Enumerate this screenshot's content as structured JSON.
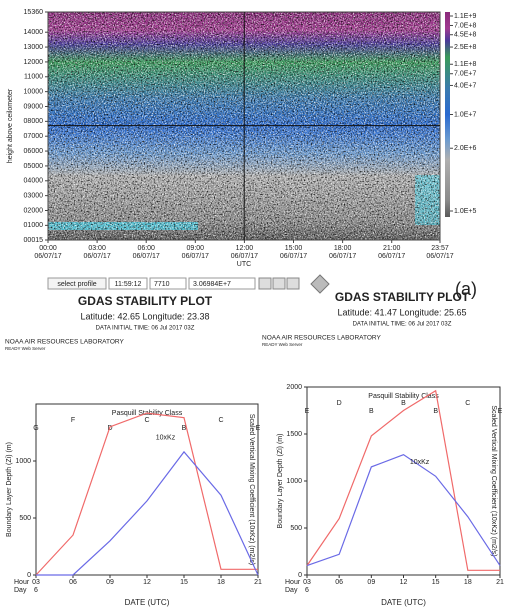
{
  "chart_data": [
    {
      "type": "heatmap",
      "y_label": "height above ceilometer",
      "x_label": "UTC",
      "xlim": [
        0,
        23.95
      ],
      "xticks": [
        {
          "value": 0,
          "label": "00:00"
        },
        {
          "value": 3,
          "label": "03:00"
        },
        {
          "value": 6,
          "label": "06:00"
        },
        {
          "value": 9,
          "label": "09:00"
        },
        {
          "value": 12,
          "label": "12:00"
        },
        {
          "value": 15,
          "label": "15:00"
        },
        {
          "value": 18,
          "label": "18:00"
        },
        {
          "value": 21,
          "label": "21:00"
        },
        {
          "value": 23.95,
          "label": "23:57"
        }
      ],
      "x_dates": [
        "06/07/17",
        "06/07/17",
        "06/07/17",
        "06/07/17",
        "06/07/17",
        "06/07/17",
        "06/07/17",
        "06/07/17",
        "06/07/17"
      ],
      "ylim": [
        15,
        15360
      ],
      "yticks": [
        {
          "value": 15,
          "label": "00015"
        },
        {
          "value": 1000,
          "label": "01000"
        },
        {
          "value": 2000,
          "label": "02000"
        },
        {
          "value": 3000,
          "label": "03000"
        },
        {
          "value": 4000,
          "label": "04000"
        },
        {
          "value": 5000,
          "label": "05000"
        },
        {
          "value": 6000,
          "label": "06000"
        },
        {
          "value": 7000,
          "label": "07000"
        },
        {
          "value": 8000,
          "label": "08000"
        },
        {
          "value": 9000,
          "label": "09000"
        },
        10000,
        11000,
        12000,
        13000,
        14000,
        15360
      ],
      "clim": [
        100000,
        1100000000
      ],
      "color_scale": "log",
      "color_ticks": [
        {
          "value": 1100000000,
          "label": "1.1E+9"
        },
        {
          "value": 700000000,
          "label": "7.0E+8"
        },
        {
          "value": 450000000,
          "label": "4.5E+8"
        },
        {
          "value": 250000000,
          "label": "2.5E+8"
        },
        {
          "value": 110000000,
          "label": "1.1E+8"
        },
        {
          "value": 70000000,
          "label": "7.0E+7"
        },
        {
          "value": 40000000,
          "label": "4.0E+7"
        },
        {
          "value": 10000000,
          "label": "1.0E+7"
        },
        {
          "value": 2000000,
          "label": "2.0E+6"
        },
        {
          "value": 100000,
          "label": "1.0E+5"
        }
      ],
      "selected_profile": {
        "button": "select profile",
        "time": "11:59:12",
        "height": 7710,
        "value": {
          "value": 30698400,
          "label": "3.06984E+7"
        }
      },
      "panel_label": "(a)"
    },
    {
      "type": "line",
      "title": "GDAS STABILITY PLOT",
      "subtitle": "Latitude: 42.65 Longitude: 23.38",
      "init_time": "DATA INITIAL TIME: 06 Jul 2017 03Z",
      "source": "NOAA AIR RESOURCES LABORATORY",
      "source_sub": "READY Web Server",
      "class_label": "Pasquill Stability Class",
      "y_label": "Boundary Layer Depth (Zi) (m)",
      "y2_label": "Scaled Vertical Mixing Coefficient (10xKz) (m2/s)",
      "x_label": "DATE (UTC)",
      "hour_label": "Hour",
      "day_label": "Day",
      "day": "6",
      "x": [
        3,
        6,
        9,
        12,
        15,
        18,
        21
      ],
      "xlim": [
        3,
        21
      ],
      "xticks": [
        {
          "value": 3,
          "label": "03"
        },
        {
          "value": 6,
          "label": "06"
        },
        {
          "value": 9,
          "label": "09"
        },
        12,
        15,
        18,
        21
      ],
      "ylim": [
        0,
        1500
      ],
      "yticks": [
        0,
        500,
        1000
      ],
      "stability_class": [
        "G",
        "F",
        "D",
        "C",
        "B",
        "C",
        "E"
      ],
      "series": [
        {
          "color": "#f06a6a",
          "values": [
            0,
            350,
            1300,
            1420,
            1380,
            50,
            50
          ]
        },
        {
          "color": "#6a6ae6",
          "values": [
            0,
            0,
            300,
            650,
            1080,
            700,
            0
          ]
        }
      ],
      "annotation": "10xKz"
    },
    {
      "type": "line",
      "title": "GDAS STABILITY PLOT",
      "subtitle": "Latitude: 41.47 Longitude: 25.65",
      "init_time": "DATA INITIAL TIME: 06 Jul 2017 03Z",
      "source": "NOAA AIR RESOURCES LABORATORY",
      "source_sub": "READY Web Server",
      "class_label": "Pasquill Stability Class",
      "y_label": "Boundary Layer Depth (Zi) (m)",
      "y2_label": "Scaled Vertical Mixing Coefficient (10xKz) (m2/s)",
      "x_label": "DATE (UTC)",
      "hour_label": "Hour",
      "day_label": "Day",
      "day": "6",
      "x": [
        3,
        6,
        9,
        12,
        15,
        18,
        21
      ],
      "xlim": [
        3,
        21
      ],
      "xticks": [
        {
          "value": 3,
          "label": "03"
        },
        {
          "value": 6,
          "label": "06"
        },
        {
          "value": 9,
          "label": "09"
        },
        12,
        15,
        18,
        21
      ],
      "ylim": [
        0,
        2000
      ],
      "yticks": [
        0,
        500,
        1000,
        1500,
        2000
      ],
      "stability_class": [
        "E",
        "D",
        "B",
        "B",
        "B",
        "C",
        "E"
      ],
      "series": [
        {
          "color": "#f06a6a",
          "values": [
            100,
            600,
            1480,
            1750,
            1960,
            50,
            50
          ]
        },
        {
          "color": "#6a6ae6",
          "values": [
            100,
            220,
            1150,
            1280,
            1050,
            620,
            100
          ]
        }
      ],
      "annotation": "10xKz"
    }
  ]
}
